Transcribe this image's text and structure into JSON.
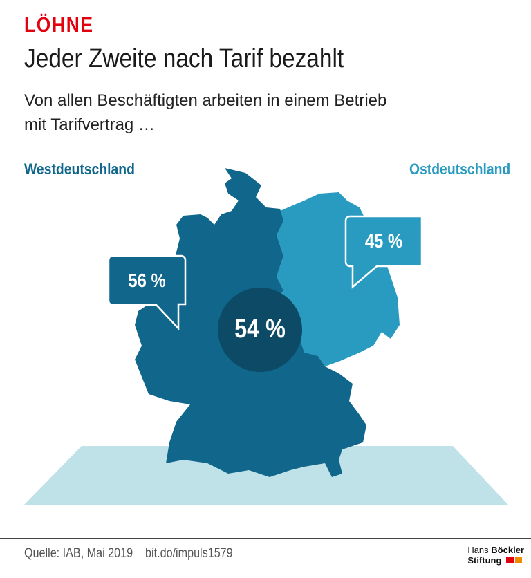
{
  "header": {
    "kicker": "LÖHNE",
    "title": "Jeder Zweite nach Tarif bezahlt",
    "subtitle_line1": "Von allen Beschäftigten arbeiten in einem Betrieb",
    "subtitle_line2": "mit Tarifvertrag …"
  },
  "regions": {
    "west": {
      "label": "Westdeutschland",
      "value": "56 %",
      "color": "#11668c"
    },
    "east": {
      "label": "Ostdeutschland",
      "value": "45 %",
      "color": "#2a9bc0"
    },
    "total": {
      "value": "54 %",
      "color": "#0c4a66"
    }
  },
  "colors": {
    "kicker": "#e3000f",
    "floor": "#bfe2e8"
  },
  "footer": {
    "source": "Quelle: IAB, Mai 2019",
    "link": "bit.do/impuls1579",
    "logo_line1_a": "Hans",
    "logo_line1_b": "Böckler",
    "logo_line2": "Stiftung"
  }
}
